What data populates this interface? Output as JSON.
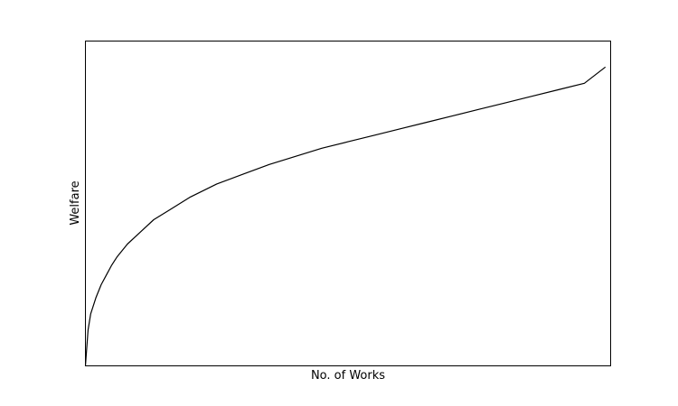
{
  "chart_data": {
    "type": "line",
    "xlabel": "No. of Works",
    "ylabel": "Welfare",
    "x_ticks_visible": false,
    "y_ticks_visible": false,
    "grid": false,
    "xlim": [
      0,
      100
    ],
    "ylim": [
      0,
      1
    ],
    "line_color": "#000000",
    "series": [
      {
        "x": [
          0,
          0.5,
          1,
          2,
          3,
          4,
          5,
          6,
          8,
          10,
          13,
          16,
          20,
          25,
          30,
          35,
          40,
          45,
          50,
          55,
          60,
          65,
          70,
          75,
          80,
          85,
          90,
          95,
          99
        ],
        "y": [
          0,
          0.11,
          0.16,
          0.21,
          0.25,
          0.28,
          0.31,
          0.335,
          0.375,
          0.405,
          0.45,
          0.48,
          0.52,
          0.56,
          0.59,
          0.62,
          0.645,
          0.67,
          0.69,
          0.71,
          0.73,
          0.75,
          0.77,
          0.79,
          0.81,
          0.83,
          0.85,
          0.87,
          0.92
        ]
      }
    ]
  }
}
